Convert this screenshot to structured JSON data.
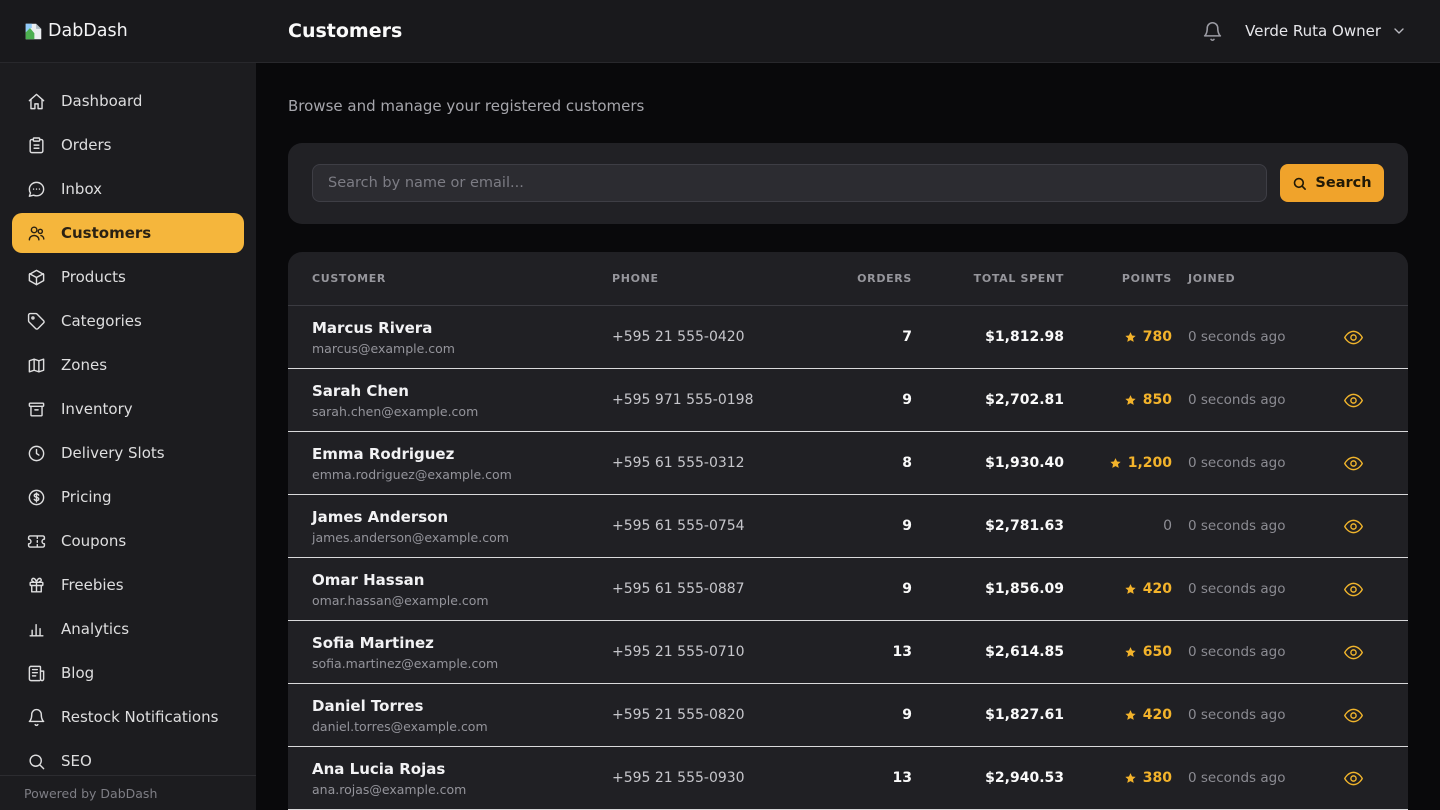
{
  "brand": {
    "name": "DabDash",
    "powered_by": "Powered by DabDash"
  },
  "header": {
    "title": "Customers",
    "user_name": "Verde Ruta Owner"
  },
  "sidebar": {
    "items": [
      {
        "label": "Dashboard",
        "icon": "home",
        "active": false
      },
      {
        "label": "Orders",
        "icon": "clipboard",
        "active": false
      },
      {
        "label": "Inbox",
        "icon": "chat-bubble",
        "active": false
      },
      {
        "label": "Customers",
        "icon": "users",
        "active": true
      },
      {
        "label": "Products",
        "icon": "package",
        "active": false
      },
      {
        "label": "Categories",
        "icon": "tag",
        "active": false
      },
      {
        "label": "Zones",
        "icon": "map",
        "active": false
      },
      {
        "label": "Inventory",
        "icon": "archive",
        "active": false
      },
      {
        "label": "Delivery Slots",
        "icon": "clock",
        "active": false
      },
      {
        "label": "Pricing",
        "icon": "dollar-circle",
        "active": false
      },
      {
        "label": "Coupons",
        "icon": "ticket",
        "active": false
      },
      {
        "label": "Freebies",
        "icon": "gift",
        "active": false
      },
      {
        "label": "Analytics",
        "icon": "bar-chart",
        "active": false
      },
      {
        "label": "Blog",
        "icon": "newspaper",
        "active": false
      },
      {
        "label": "Restock Notifications",
        "icon": "bell",
        "active": false
      },
      {
        "label": "SEO",
        "icon": "search",
        "active": false
      }
    ]
  },
  "main": {
    "subtitle": "Browse and manage your registered customers",
    "search": {
      "placeholder": "Search by name or email...",
      "button_label": "Search"
    },
    "table": {
      "columns": [
        "CUSTOMER",
        "PHONE",
        "ORDERS",
        "TOTAL SPENT",
        "POINTS",
        "JOINED"
      ],
      "rows": [
        {
          "name": "Marcus Rivera",
          "email": "marcus@example.com",
          "phone": "+595 21 555-0420",
          "orders": "7",
          "total_spent": "$1,812.98",
          "points": "780",
          "has_points": true,
          "joined": "0 seconds ago"
        },
        {
          "name": "Sarah Chen",
          "email": "sarah.chen@example.com",
          "phone": "+595 971 555-0198",
          "orders": "9",
          "total_spent": "$2,702.81",
          "points": "850",
          "has_points": true,
          "joined": "0 seconds ago"
        },
        {
          "name": "Emma Rodriguez",
          "email": "emma.rodriguez@example.com",
          "phone": "+595 61 555-0312",
          "orders": "8",
          "total_spent": "$1,930.40",
          "points": "1,200",
          "has_points": true,
          "joined": "0 seconds ago"
        },
        {
          "name": "James Anderson",
          "email": "james.anderson@example.com",
          "phone": "+595 61 555-0754",
          "orders": "9",
          "total_spent": "$2,781.63",
          "points": "0",
          "has_points": false,
          "joined": "0 seconds ago"
        },
        {
          "name": "Omar Hassan",
          "email": "omar.hassan@example.com",
          "phone": "+595 61 555-0887",
          "orders": "9",
          "total_spent": "$1,856.09",
          "points": "420",
          "has_points": true,
          "joined": "0 seconds ago"
        },
        {
          "name": "Sofia Martinez",
          "email": "sofia.martinez@example.com",
          "phone": "+595 21 555-0710",
          "orders": "13",
          "total_spent": "$2,614.85",
          "points": "650",
          "has_points": true,
          "joined": "0 seconds ago"
        },
        {
          "name": "Daniel Torres",
          "email": "daniel.torres@example.com",
          "phone": "+595 21 555-0820",
          "orders": "9",
          "total_spent": "$1,827.61",
          "points": "420",
          "has_points": true,
          "joined": "0 seconds ago"
        },
        {
          "name": "Ana Lucia Rojas",
          "email": "ana.rojas@example.com",
          "phone": "+595 21 555-0930",
          "orders": "13",
          "total_spent": "$2,940.53",
          "points": "380",
          "has_points": true,
          "joined": "0 seconds ago"
        }
      ]
    }
  },
  "colors": {
    "accent_active": "#f5b63c",
    "accent_button": "#f0a32b",
    "accent_points": "#f3b32b",
    "header_bg": "#19191c",
    "sidebar_bg": "#1c1c1f",
    "page_bg": "#09090b",
    "card_bg": "#202024",
    "row_divider": "#d9d9db"
  }
}
